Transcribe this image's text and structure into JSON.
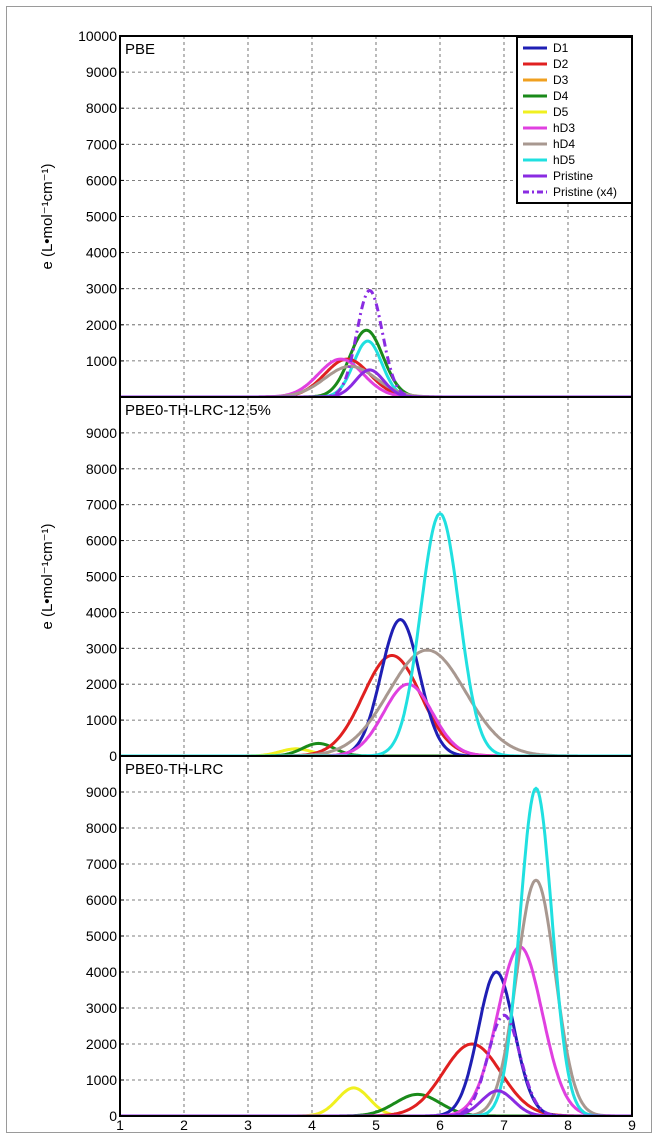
{
  "chart_data": {
    "type": "line",
    "x_ticks": [
      "1",
      "2",
      "3",
      "4",
      "5",
      "6",
      "7",
      "8",
      "9"
    ],
    "xlim": [
      1,
      9
    ],
    "legend_position": "top-right",
    "legend": [
      {
        "name": "D1",
        "color": "#1f1fb4",
        "dash": false
      },
      {
        "name": "D2",
        "color": "#e02020",
        "dash": false
      },
      {
        "name": "D3",
        "color": "#f0a020",
        "dash": false
      },
      {
        "name": "D4",
        "color": "#1a8a1a",
        "dash": false
      },
      {
        "name": "D5",
        "color": "#f0f020",
        "dash": false
      },
      {
        "name": "hD3",
        "color": "#e040e0",
        "dash": false
      },
      {
        "name": "hD4",
        "color": "#a89890",
        "dash": false
      },
      {
        "name": "hD5",
        "color": "#20e0e0",
        "dash": false
      },
      {
        "name": "Pristine",
        "color": "#8a2be2",
        "dash": false
      },
      {
        "name": "Pristine (x4)",
        "color": "#8a2be2",
        "dash": true
      }
    ],
    "panels": [
      {
        "title": "PBE",
        "ylabel": "e (L•mol⁻¹cm⁻¹)",
        "ylim": [
          0,
          10000
        ],
        "y_ticks": [
          "1000",
          "2000",
          "3000",
          "4000",
          "5000",
          "6000",
          "7000",
          "8000",
          "9000",
          "10000"
        ],
        "series": [
          {
            "name": "D4",
            "peaks": [
              {
                "center": 4.85,
                "height": 1850,
                "width": 0.26
              }
            ]
          },
          {
            "name": "hD5",
            "peaks": [
              {
                "center": 4.87,
                "height": 1550,
                "width": 0.22
              }
            ]
          },
          {
            "name": "D2",
            "peaks": [
              {
                "center": 4.55,
                "height": 1050,
                "width": 0.35
              }
            ]
          },
          {
            "name": "hD3",
            "peaks": [
              {
                "center": 4.45,
                "height": 1050,
                "width": 0.35
              }
            ]
          },
          {
            "name": "hD4",
            "peaks": [
              {
                "center": 4.6,
                "height": 850,
                "width": 0.4
              }
            ]
          },
          {
            "name": "Pristine",
            "peaks": [
              {
                "center": 4.9,
                "height": 750,
                "width": 0.22
              }
            ]
          },
          {
            "name": "Pristine (x4)",
            "peaks": [
              {
                "center": 4.9,
                "height": 2950,
                "width": 0.2
              }
            ]
          }
        ]
      },
      {
        "title": "PBE0-TH-LRC-12.5%",
        "ylabel": "e (L•mol⁻¹cm⁻¹)",
        "ylim": [
          0,
          10000
        ],
        "y_ticks": [
          "0",
          "1000",
          "2000",
          "3000",
          "4000",
          "5000",
          "6000",
          "7000",
          "8000",
          "9000"
        ],
        "series": [
          {
            "name": "D5",
            "peaks": [
              {
                "center": 3.75,
                "height": 200,
                "width": 0.25
              }
            ]
          },
          {
            "name": "D4",
            "peaks": [
              {
                "center": 4.1,
                "height": 350,
                "width": 0.25
              }
            ]
          },
          {
            "name": "D2",
            "peaks": [
              {
                "center": 5.25,
                "height": 2800,
                "width": 0.45
              }
            ]
          },
          {
            "name": "D1",
            "peaks": [
              {
                "center": 5.38,
                "height": 3800,
                "width": 0.3
              }
            ]
          },
          {
            "name": "hD3",
            "peaks": [
              {
                "center": 5.5,
                "height": 2000,
                "width": 0.38
              }
            ]
          },
          {
            "name": "hD4",
            "peaks": [
              {
                "center": 5.8,
                "height": 2950,
                "width": 0.6
              }
            ]
          },
          {
            "name": "hD5",
            "peaks": [
              {
                "center": 6.0,
                "height": 6750,
                "width": 0.3
              }
            ]
          }
        ]
      },
      {
        "title": "PBE0-TH-LRC",
        "ylabel": "",
        "ylim": [
          0,
          10000
        ],
        "y_ticks": [
          "0",
          "1000",
          "2000",
          "3000",
          "4000",
          "5000",
          "6000",
          "7000",
          "8000",
          "9000"
        ],
        "series": [
          {
            "name": "D5",
            "peaks": [
              {
                "center": 4.65,
                "height": 780,
                "width": 0.25
              }
            ]
          },
          {
            "name": "D4",
            "peaks": [
              {
                "center": 5.65,
                "height": 600,
                "width": 0.35
              }
            ]
          },
          {
            "name": "D2",
            "peaks": [
              {
                "center": 6.5,
                "height": 2000,
                "width": 0.45
              }
            ]
          },
          {
            "name": "D1",
            "peaks": [
              {
                "center": 6.88,
                "height": 4000,
                "width": 0.28
              }
            ]
          },
          {
            "name": "hD3",
            "peaks": [
              {
                "center": 7.25,
                "height": 4700,
                "width": 0.35
              }
            ]
          },
          {
            "name": "hD4",
            "peaks": [
              {
                "center": 7.5,
                "height": 6550,
                "width": 0.3
              }
            ]
          },
          {
            "name": "hD5",
            "peaks": [
              {
                "center": 7.5,
                "height": 9100,
                "width": 0.25
              }
            ]
          },
          {
            "name": "Pristine",
            "peaks": [
              {
                "center": 6.9,
                "height": 700,
                "width": 0.25
              }
            ]
          },
          {
            "name": "Pristine (x4)",
            "peaks": [
              {
                "center": 7.0,
                "height": 2800,
                "width": 0.25
              }
            ]
          }
        ]
      }
    ]
  }
}
